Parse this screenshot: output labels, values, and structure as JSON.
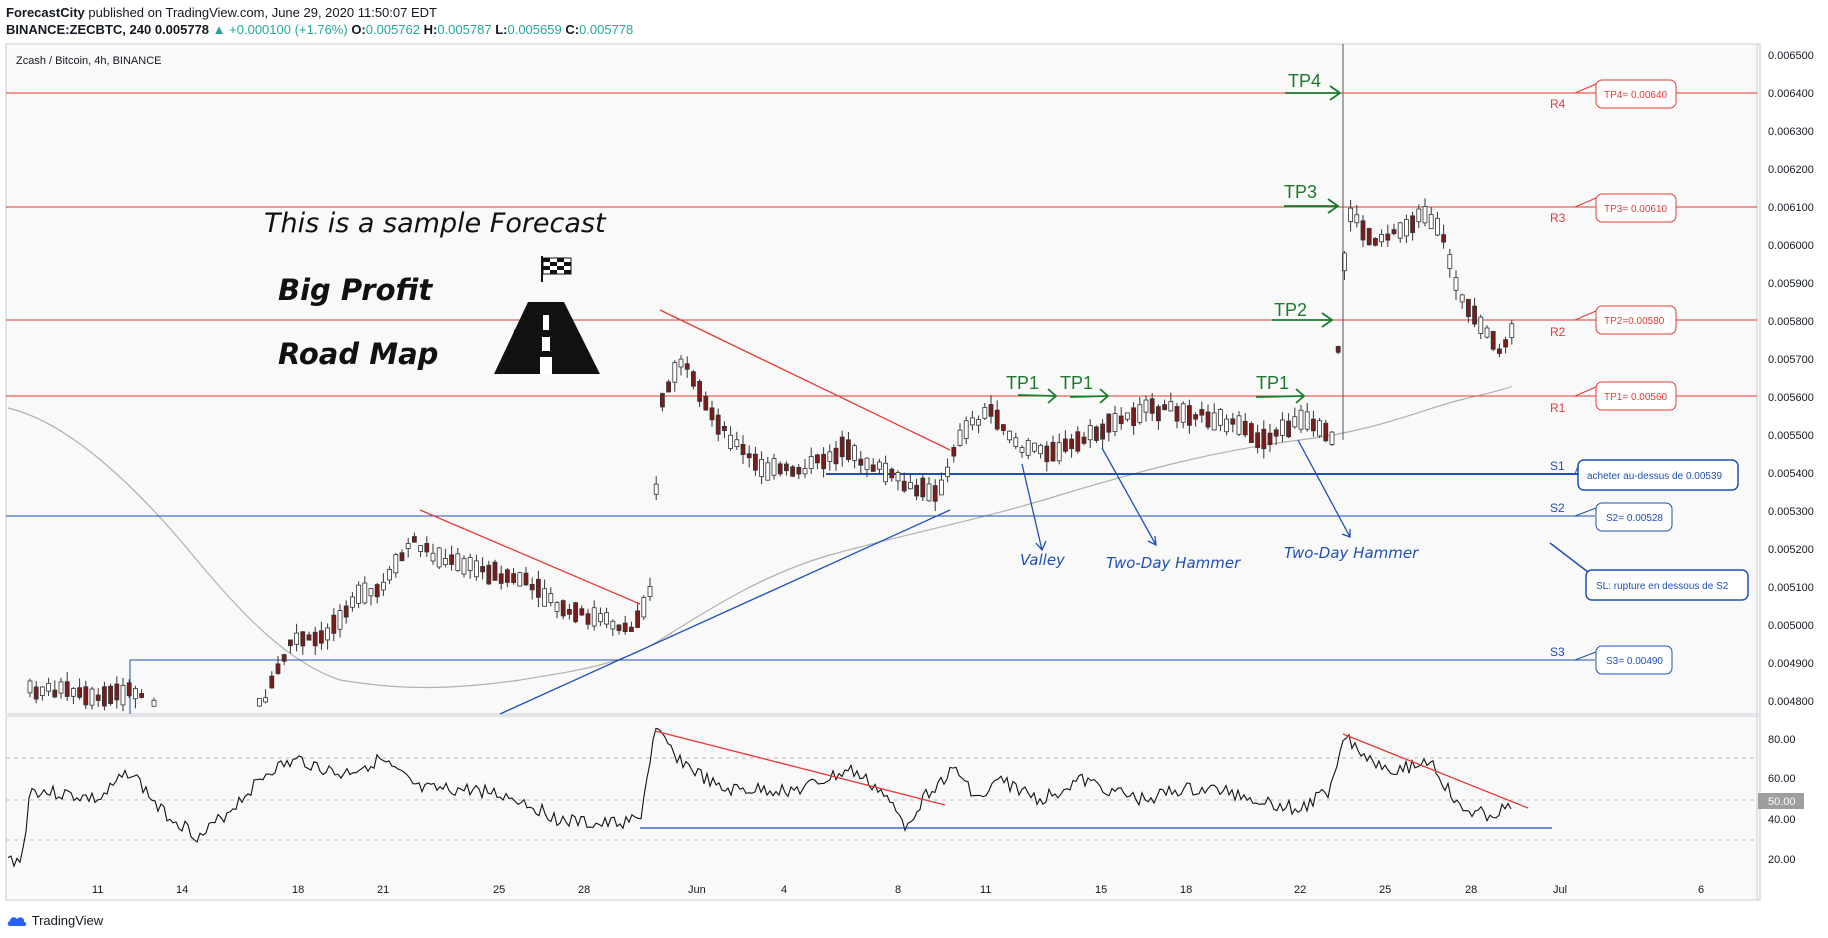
{
  "header": {
    "author": "ForecastCity",
    "published": "published on TradingView.com, June 29, 2020 11:50:07 EDT",
    "symbol": "BINANCE:ZECBTC, 240",
    "price": "0.005778",
    "change": "▲ +0.000100 (+1.76%)",
    "o_label": "O:",
    "o_val": "0.005762",
    "h_label": "H:",
    "h_val": "0.005787",
    "l_label": "L:",
    "l_val": "0.005659",
    "c_label": "C:",
    "c_val": "0.005778"
  },
  "pane_title": "Zcash / Bitcoin, 4h, BINANCE",
  "footer": {
    "brand": "TradingView",
    "icon": "tradingview-cloud-icon"
  },
  "overlay": {
    "sample": "This is a sample Forecast",
    "big_profit": "Big Profit",
    "road_map": "Road Map",
    "flag_icon": "checkered-flag-icon",
    "road_icon": "road-icon"
  },
  "colors": {
    "resistance": "#e53935",
    "support": "#1e4fb8",
    "tp": "#1b7a2b",
    "candle_up": "#ffffff",
    "candle_down": "#7a1c1c",
    "ma": "#b0b0b0",
    "annotation_blue": "#1e4fb8"
  },
  "levels": {
    "R4": "R4",
    "R3": "R3",
    "R2": "R2",
    "R1": "R1",
    "S1": "S1",
    "S2": "S2",
    "S3": "S3",
    "tp4_box": "TP4= 0.00640",
    "tp3_box": "TP3= 0.00610",
    "tp2_box": "TP2=0.00580",
    "tp1_box": "TP1= 0.00560",
    "s1_box": "acheter au-dessus de 0.00539",
    "s2_box": "S2= 0.00528",
    "sl_box": "SL: rupture en dessous de S2",
    "s3_box": "S3= 0.00490"
  },
  "tp_labels": {
    "tp4": "TP4",
    "tp3": "TP3",
    "tp2": "TP2",
    "tp1_a": "TP1",
    "tp1_b": "TP1",
    "tp1_c": "TP1"
  },
  "annotations": {
    "valley": "Valley",
    "hammer1": "Two-Day Hammer",
    "hammer2": "Two-Day Hammer"
  },
  "price_axis": [
    "0.006500",
    "0.006400",
    "0.006300",
    "0.006200",
    "0.006100",
    "0.006000",
    "0.005900",
    "0.005800",
    "0.005700",
    "0.005600",
    "0.005500",
    "0.005400",
    "0.005300",
    "0.005200",
    "0.005100",
    "0.005000",
    "0.004900",
    "0.004800"
  ],
  "rsi_axis": [
    "80.00",
    "60.00",
    "40.00",
    "20.00"
  ],
  "rsi_current": "50.00",
  "time_axis": [
    "11",
    "14",
    "18",
    "21",
    "25",
    "28",
    "Jun",
    "4",
    "8",
    "11",
    "15",
    "18",
    "22",
    "25",
    "28",
    "Jul",
    "6"
  ]
}
